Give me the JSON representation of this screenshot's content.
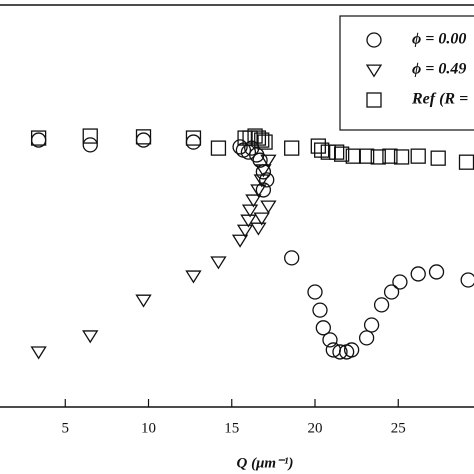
{
  "chart_data": {
    "type": "scatter",
    "x_label": "Q (μm⁻¹)",
    "xlim": [
      1.08,
      29.55
    ],
    "xticks": [
      5,
      10,
      15,
      20,
      25
    ],
    "ylim": [
      0,
      100
    ],
    "legend": "upper right",
    "series": [
      {
        "name": "ϕ = 0.00",
        "marker": "circle",
        "color": "#111111",
        "x": [
          3.4,
          6.5,
          9.7,
          12.7,
          15.5,
          15.7,
          16.0,
          16.2,
          16.5,
          16.7,
          16.9,
          17.1,
          16.9,
          18.6,
          20.0,
          20.3,
          20.5,
          20.9,
          21.1,
          21.5,
          21.9,
          22.2,
          23.1,
          23.4,
          24.0,
          24.6,
          25.1,
          26.2,
          27.3,
          29.2
        ],
        "values": [
          66.4,
          65.2,
          66.4,
          65.9,
          64.7,
          63.9,
          63.4,
          64.4,
          62.7,
          61.4,
          58.5,
          56.5,
          54.0,
          37.1,
          28.6,
          24.1,
          19.7,
          16.7,
          14.2,
          13.7,
          13.7,
          14.2,
          17.2,
          20.4,
          25.4,
          28.6,
          31.1,
          33.1,
          33.6,
          31.6
        ]
      },
      {
        "name": "ϕ = 0.49",
        "marker": "triangle",
        "color": "#111111",
        "x": [
          3.4,
          6.5,
          9.7,
          12.7,
          14.2,
          15.5,
          15.8,
          16.0,
          16.1,
          16.3,
          16.6,
          16.8,
          17.2,
          16.8,
          16.6,
          16.9,
          17.2
        ],
        "values": [
          13.7,
          17.7,
          26.6,
          32.6,
          36.1,
          41.5,
          44.0,
          46.5,
          49.0,
          51.5,
          54.0,
          56.5,
          50.0,
          47.0,
          44.5,
          59.0,
          61.4
        ]
      },
      {
        "name": "Ref (R =",
        "marker": "square",
        "color": "#111111",
        "x": [
          3.4,
          6.5,
          9.7,
          12.7,
          14.2,
          15.8,
          16.1,
          16.4,
          16.6,
          16.8,
          17.0,
          18.6,
          20.2,
          20.4,
          20.8,
          21.3,
          21.6,
          22.3,
          23.1,
          23.8,
          24.5,
          25.2,
          26.2,
          27.4,
          29.1
        ],
        "values": [
          66.9,
          67.4,
          67.2,
          66.9,
          64.4,
          66.9,
          66.9,
          67.4,
          66.9,
          66.4,
          65.9,
          64.4,
          64.9,
          63.9,
          63.4,
          63.4,
          62.9,
          62.4,
          62.4,
          62.2,
          62.4,
          62.2,
          62.4,
          61.9,
          60.9
        ]
      }
    ]
  }
}
